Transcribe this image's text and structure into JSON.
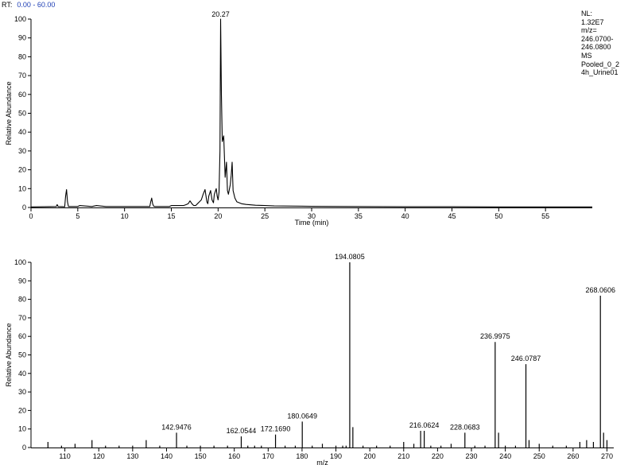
{
  "header": {
    "rt_label": "RT:",
    "rt_range": "0.00 - 60.00"
  },
  "info": {
    "lines": [
      "NL:",
      "1.32E7",
      "m/z=",
      "246.0700-",
      "246.0800",
      "MS",
      "Pooled_0_2",
      "4h_Urine01"
    ]
  },
  "chart_data": [
    {
      "type": "line",
      "title": "",
      "xlabel": "Time (min)",
      "ylabel": "Relative Abundance",
      "xlim": [
        0,
        60
      ],
      "ylim": [
        0,
        100
      ],
      "xticks": [
        0,
        5,
        10,
        15,
        20,
        25,
        30,
        35,
        40,
        45,
        50,
        55
      ],
      "yticks": [
        0,
        10,
        20,
        30,
        40,
        50,
        60,
        70,
        80,
        90,
        100
      ],
      "x": [
        0,
        2.7,
        2.8,
        2.9,
        3.6,
        3.7,
        3.8,
        3.9,
        4.0,
        5.0,
        5.2,
        6.5,
        7.0,
        8.0,
        10.0,
        12.7,
        12.8,
        12.9,
        13.0,
        13.1,
        13.2,
        13.4,
        14.8,
        15.0,
        16.3,
        16.6,
        16.8,
        17.0,
        17.2,
        17.4,
        17.6,
        17.8,
        18.2,
        18.4,
        18.6,
        18.8,
        18.9,
        19.0,
        19.2,
        19.35,
        19.5,
        19.6,
        19.8,
        19.9,
        20.0,
        20.1,
        20.2,
        20.27,
        20.35,
        20.45,
        20.6,
        20.75,
        20.9,
        21.0,
        21.1,
        21.3,
        21.4,
        21.5,
        21.6,
        21.8,
        22.0,
        22.5,
        23.0,
        24.0,
        25.0,
        26.0,
        28.0,
        30.0,
        35.0,
        40.0,
        45.0,
        50.0,
        55.0,
        60.0
      ],
      "y": [
        0.3,
        0.5,
        1.5,
        0.5,
        0.4,
        6,
        9.5,
        3,
        0.5,
        0.5,
        1,
        0.5,
        1,
        0.5,
        0.5,
        0.5,
        3,
        5,
        2,
        0.8,
        0.5,
        0.5,
        0.5,
        1,
        1,
        1.5,
        2,
        3.5,
        2,
        1,
        1,
        2,
        4,
        7,
        9.5,
        3,
        2,
        6,
        9,
        4,
        2.5,
        7,
        10,
        6,
        4,
        8,
        30,
        100,
        60,
        35,
        38,
        16,
        24,
        9,
        7,
        12,
        17,
        24,
        9,
        5,
        3,
        2,
        1.6,
        1.2,
        1,
        0.8,
        0.7,
        0.6,
        0.5,
        0.4,
        0.4,
        0.3,
        0.3,
        0.3
      ],
      "annotations": [
        {
          "x": 20.27,
          "y": 100,
          "text": "20.27"
        }
      ]
    },
    {
      "type": "bar",
      "title": "",
      "xlabel": "m/z",
      "ylabel": "Relative Abundance",
      "xlim": [
        100,
        272
      ],
      "ylim": [
        0,
        100
      ],
      "xticks": [
        110,
        120,
        130,
        140,
        150,
        160,
        170,
        180,
        190,
        200,
        210,
        220,
        230,
        240,
        250,
        260,
        270
      ],
      "yticks": [
        0,
        10,
        20,
        30,
        40,
        50,
        60,
        70,
        80,
        90,
        100
      ],
      "x": [
        105,
        109,
        113,
        118,
        122,
        126,
        130,
        134,
        138,
        142.9476,
        146,
        150,
        154,
        158,
        162.0544,
        164,
        166,
        168,
        172.169,
        175,
        178,
        180.0649,
        183,
        186,
        190,
        192,
        193,
        194.0805,
        195,
        198,
        202,
        206,
        210,
        213,
        215,
        216.0624,
        218,
        221,
        224,
        228.0683,
        231,
        234,
        236.9975,
        238,
        240,
        243,
        246.0787,
        247,
        250,
        254,
        258,
        262,
        264,
        266,
        268.0606,
        269,
        270
      ],
      "values": [
        3,
        1,
        2,
        4,
        1,
        1,
        1,
        4,
        1,
        8,
        1,
        1,
        1,
        1,
        6,
        1,
        1,
        1,
        7,
        1,
        1,
        14,
        1,
        2,
        1,
        1,
        1,
        100,
        11,
        1,
        1,
        1,
        3,
        2,
        9,
        9,
        1,
        1,
        2,
        8,
        1,
        1,
        57,
        8,
        1,
        1,
        45,
        4,
        2,
        1,
        1,
        3,
        4,
        3,
        82,
        8,
        4
      ],
      "labels": [
        {
          "x": 142.9476,
          "y": 8,
          "text": "142.9476"
        },
        {
          "x": 162.0544,
          "y": 6,
          "text": "162.0544"
        },
        {
          "x": 172.169,
          "y": 7,
          "text": "172.1690"
        },
        {
          "x": 180.0649,
          "y": 14,
          "text": "180.0649"
        },
        {
          "x": 194.0805,
          "y": 100,
          "text": "194.0805"
        },
        {
          "x": 216.0624,
          "y": 9,
          "text": "216.0624"
        },
        {
          "x": 228.0683,
          "y": 8,
          "text": "228.0683"
        },
        {
          "x": 236.9975,
          "y": 57,
          "text": "236.9975"
        },
        {
          "x": 246.0787,
          "y": 45,
          "text": "246.0787"
        },
        {
          "x": 268.0606,
          "y": 82,
          "text": "268.0606"
        }
      ]
    }
  ]
}
